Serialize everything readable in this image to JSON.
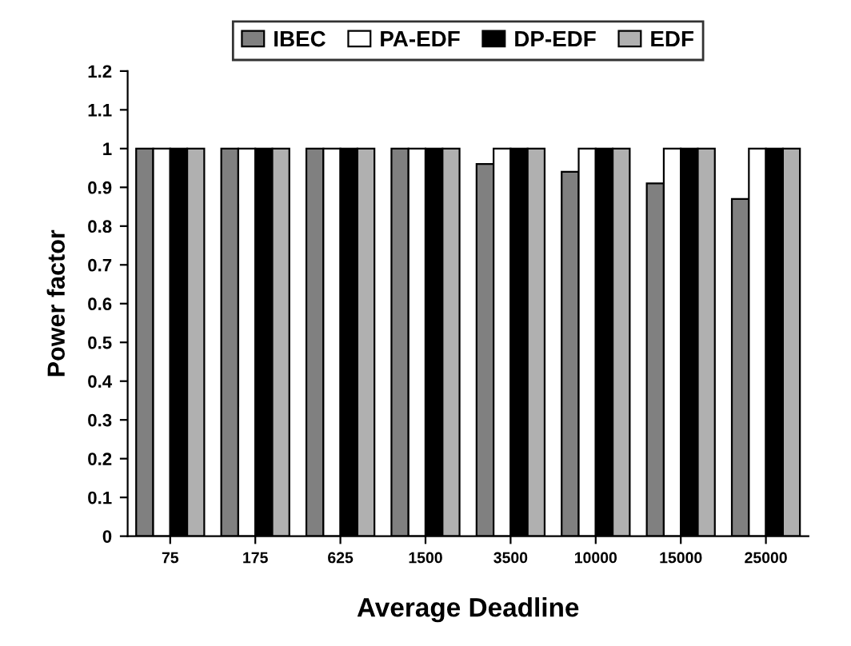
{
  "chart_data": {
    "type": "bar",
    "xlabel": "Average Deadline",
    "ylabel": "Power factor",
    "categories": [
      "75",
      "175",
      "625",
      "1500",
      "3500",
      "10000",
      "15000",
      "25000"
    ],
    "series": [
      {
        "name": "IBEC",
        "color": "#808080",
        "values": [
          1,
          1,
          1,
          1,
          0.96,
          0.94,
          0.91,
          0.87
        ]
      },
      {
        "name": "PA-EDF",
        "color": "#ffffff",
        "values": [
          1,
          1,
          1,
          1,
          1,
          1,
          1,
          1
        ]
      },
      {
        "name": "DP-EDF",
        "color": "#000000",
        "values": [
          1,
          1,
          1,
          1,
          1,
          1,
          1,
          1
        ]
      },
      {
        "name": "EDF",
        "color": "#b0b0b0",
        "values": [
          1,
          1,
          1,
          1,
          1,
          1,
          1,
          1
        ]
      }
    ],
    "ylim": [
      0,
      1.2
    ],
    "yticks": [
      0,
      0.1,
      0.2,
      0.3,
      0.4,
      0.5,
      0.6,
      0.7,
      0.8,
      0.9,
      1,
      1.1,
      1.2
    ],
    "grid": false,
    "legend": "top"
  }
}
